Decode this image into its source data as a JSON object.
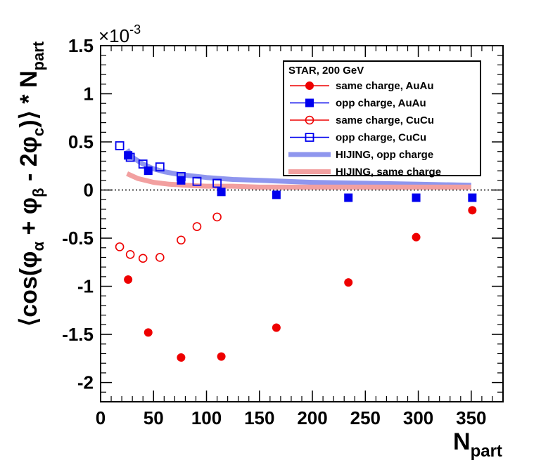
{
  "chart_data": {
    "type": "scatter",
    "title": "",
    "xlabel_main": "N",
    "xlabel_sub": "part",
    "ylabel_text": "⟨cos(φ_α + φ_β − 2φ_c)⟩ * N_part",
    "y_exponent_label": "×10",
    "y_exponent_power": "-3",
    "xlim": [
      0,
      380
    ],
    "ylim": [
      -2.2,
      1.5
    ],
    "x_ticks": [
      0,
      50,
      100,
      150,
      200,
      250,
      300,
      350
    ],
    "x_tick_labels": [
      "0",
      "50",
      "100",
      "150",
      "200",
      "250",
      "300",
      "350"
    ],
    "y_ticks": [
      -2,
      -1.5,
      -1,
      -0.5,
      0,
      0.5,
      1,
      1.5
    ],
    "y_tick_labels": [
      "-2",
      "-1.5",
      "-1",
      "-0.5",
      "0",
      "0.5",
      "1",
      "1.5"
    ],
    "zero_line": true,
    "legend_title": "STAR, 200 GeV",
    "legend_position": "top-right",
    "colors": {
      "red": "#ee0000",
      "blue": "#0000ee",
      "hijing_blue": "#8f96ee",
      "hijing_red": "#f2a0a0"
    },
    "series": [
      {
        "name": "same charge, AuAu",
        "marker": "filled-circle",
        "color": "#ee0000",
        "x": [
          26,
          45,
          76,
          114,
          166,
          234,
          298,
          351
        ],
        "y": [
          -0.93,
          -1.48,
          -1.74,
          -1.73,
          -1.43,
          -0.96,
          -0.49,
          -0.21
        ]
      },
      {
        "name": "opp charge, AuAu",
        "marker": "filled-square",
        "color": "#0000ee",
        "x": [
          26,
          45,
          76,
          114,
          166,
          234,
          298,
          351
        ],
        "y": [
          0.36,
          0.2,
          0.1,
          -0.02,
          -0.05,
          -0.08,
          -0.08,
          -0.08
        ]
      },
      {
        "name": "same charge, CuCu",
        "marker": "open-circle",
        "color": "#ee0000",
        "x": [
          18,
          28,
          40,
          56,
          76,
          91,
          110
        ],
        "y": [
          -0.59,
          -0.67,
          -0.71,
          -0.7,
          -0.52,
          -0.38,
          -0.28
        ]
      },
      {
        "name": "opp charge, CuCu",
        "marker": "open-square",
        "color": "#0000ee",
        "x": [
          18,
          28,
          40,
          56,
          76,
          91,
          110
        ],
        "y": [
          0.46,
          0.34,
          0.27,
          0.24,
          0.14,
          0.09,
          0.07
        ]
      },
      {
        "name": "HIJING, opp charge",
        "marker": "band",
        "color": "#8f96ee",
        "x": [
          25,
          30,
          40,
          50,
          60,
          75,
          100,
          125,
          150,
          200,
          250,
          300,
          350
        ],
        "y": [
          0.42,
          0.34,
          0.27,
          0.22,
          0.19,
          0.16,
          0.13,
          0.11,
          0.1,
          0.08,
          0.07,
          0.06,
          0.05
        ]
      },
      {
        "name": "HIJING, same charge",
        "marker": "band",
        "color": "#f2a0a0",
        "x": [
          25,
          35,
          50,
          65,
          80,
          100,
          125,
          150,
          200,
          250,
          300,
          350
        ],
        "y": [
          0.17,
          0.12,
          0.08,
          0.06,
          0.05,
          0.04,
          0.04,
          0.03,
          0.03,
          0.03,
          0.03,
          0.03
        ]
      }
    ]
  }
}
